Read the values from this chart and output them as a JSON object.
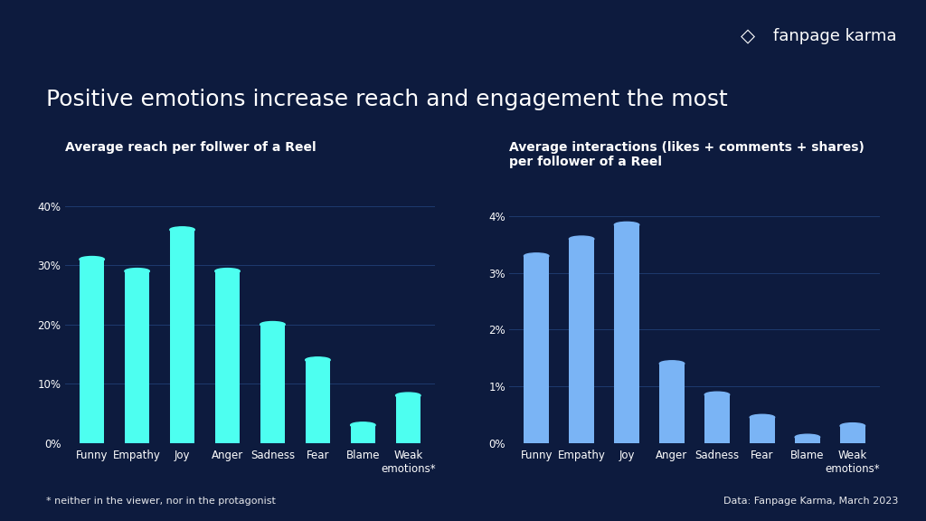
{
  "background_color": "#0d1b3e",
  "title": "Positive emotions increase reach and engagement the most",
  "title_fontsize": 18,
  "title_color": "#ffffff",
  "subtitle_text": "* neither in the viewer, nor in the protagonist",
  "footer_text": "Data: Fanpage Karma, March 2023",
  "categories": [
    "Funny",
    "Empathy",
    "Joy",
    "Anger",
    "Sadness",
    "Fear",
    "Blame",
    "Weak\nemotions*"
  ],
  "chart1": {
    "title": "Average reach per follwer of a Reel",
    "values": [
      31,
      29,
      36,
      29,
      20,
      14,
      3,
      8
    ],
    "bar_color": "#4dfff0",
    "ylim": [
      0,
      44
    ],
    "yticks": [
      0,
      10,
      20,
      30,
      40
    ],
    "ytick_labels": [
      "0%",
      "10%",
      "20%",
      "30%",
      "40%"
    ]
  },
  "chart2": {
    "title": "Average interactions (likes + comments + shares)\nper follower of a Reel",
    "values": [
      3.3,
      3.6,
      3.85,
      1.4,
      0.85,
      0.45,
      0.1,
      0.3
    ],
    "bar_color": "#7ab4f5",
    "ylim": [
      0,
      4.6
    ],
    "yticks": [
      0,
      1,
      2,
      3,
      4
    ],
    "ytick_labels": [
      "0%",
      "1%",
      "2%",
      "3%",
      "4%"
    ]
  },
  "logo_text": "fanpage karma",
  "grid_color": "#1e3a6e",
  "text_color": "#ffffff",
  "chart_title_fontsize": 10,
  "tick_fontsize": 8.5
}
